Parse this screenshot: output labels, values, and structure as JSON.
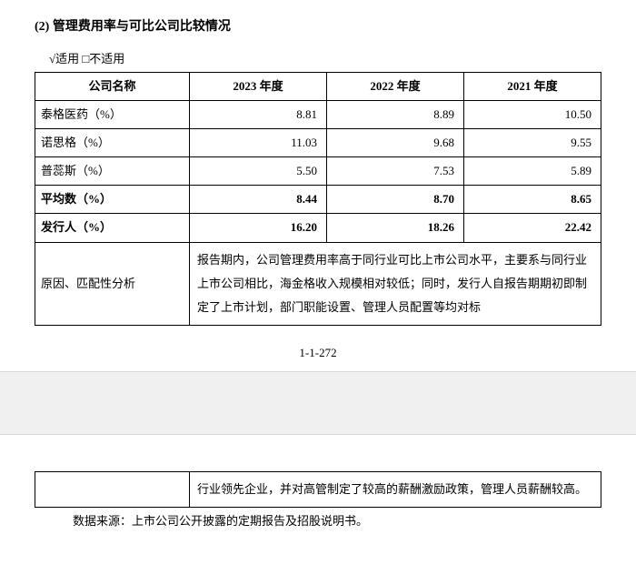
{
  "section": {
    "title": "(2) 管理费用率与可比公司比较情况",
    "applicable": "√适用 □不适用"
  },
  "table": {
    "headers": {
      "name": "公司名称",
      "y2023": "2023 年度",
      "y2022": "2022 年度",
      "y2021": "2021 年度"
    },
    "rows": [
      {
        "name": "泰格医药（%）",
        "y2023": "8.81",
        "y2022": "8.89",
        "y2021": "10.50",
        "bold": false
      },
      {
        "name": "诺思格（%）",
        "y2023": "11.03",
        "y2022": "9.68",
        "y2021": "9.55",
        "bold": false
      },
      {
        "name": "普蕊斯（%）",
        "y2023": "5.50",
        "y2022": "7.53",
        "y2021": "5.89",
        "bold": false
      },
      {
        "name": "平均数（%）",
        "y2023": "8.44",
        "y2022": "8.70",
        "y2021": "8.65",
        "bold": true
      },
      {
        "name": "发行人（%）",
        "y2023": "16.20",
        "y2022": "18.26",
        "y2021": "22.42",
        "bold": true
      }
    ],
    "analysis": {
      "label": "原因、匹配性分析",
      "text_p1": "报告期内，公司管理费用率高于同行业可比上市公司水平，主要系与同行业上市公司相比，海金格收入规模相对较低；同时，发行人自报告期期初即制定了上市计划，部门职能设置、管理人员配置等均对标",
      "text_p2": "行业领先企业，并对高管制定了较高的薪酬激励政策，管理人员薪酬较高。"
    }
  },
  "pageNumber": "1-1-272",
  "source": "数据来源：上市公司公开披露的定期报告及招股说明书。"
}
